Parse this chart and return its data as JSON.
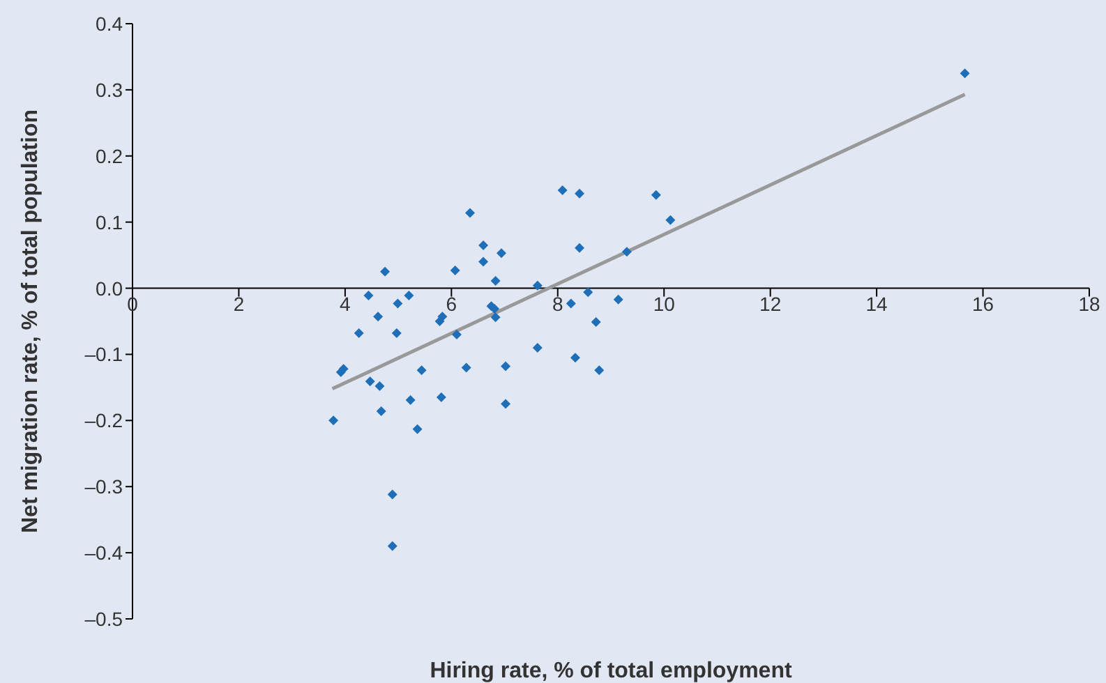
{
  "chart_data": {
    "type": "scatter",
    "xlabel": "Hiring rate, % of total employment",
    "ylabel": "Net migration rate, % of total population",
    "xlim": [
      0,
      18
    ],
    "xticks": [
      0,
      2,
      4,
      6,
      8,
      10,
      12,
      14,
      16,
      18
    ],
    "ylim": [
      -0.5,
      0.4
    ],
    "yticks": [
      {
        "value": -0.5,
        "label": "–0.5"
      },
      {
        "value": -0.4,
        "label": "–0.4"
      },
      {
        "value": -0.3,
        "label": "–0.3"
      },
      {
        "value": -0.2,
        "label": "–0.2"
      },
      {
        "value": -0.1,
        "label": "–0.1"
      },
      {
        "value": 0,
        "label": "0.0"
      },
      0.1,
      0.2,
      0.3,
      0.4
    ],
    "marker": "diamond",
    "series": [
      {
        "color": "#1f6fb8",
        "x": [
          3.78,
          3.92,
          3.97,
          4.26,
          4.44,
          4.47,
          4.62,
          4.65,
          4.68,
          4.75,
          4.89,
          4.89,
          4.97,
          4.99,
          5.2,
          5.23,
          5.36,
          5.44,
          5.78,
          5.81,
          5.83,
          6.07,
          6.1,
          6.28,
          6.35,
          6.6,
          6.6,
          6.75,
          6.81,
          6.83,
          6.83,
          6.94,
          7.02,
          7.02,
          7.62,
          7.62,
          8.09,
          8.25,
          8.33,
          8.41,
          8.41,
          8.57,
          8.72,
          8.78,
          9.14,
          9.3,
          9.85,
          10.12,
          15.66
        ],
        "values": [
          -0.2,
          -0.127,
          -0.122,
          -0.068,
          -0.011,
          -0.141,
          -0.043,
          -0.148,
          -0.186,
          0.025,
          -0.312,
          -0.39,
          -0.068,
          -0.023,
          -0.011,
          -0.169,
          -0.213,
          -0.124,
          -0.05,
          -0.165,
          -0.043,
          0.027,
          -0.07,
          -0.12,
          0.114,
          0.065,
          0.04,
          -0.027,
          -0.031,
          0.011,
          -0.044,
          0.053,
          -0.118,
          -0.175,
          0.004,
          -0.09,
          0.148,
          -0.023,
          -0.105,
          0.143,
          0.061,
          -0.006,
          -0.051,
          -0.124,
          -0.017,
          0.055,
          0.141,
          0.103,
          0.325
        ]
      },
      {
        "type": "line",
        "marker": "none",
        "color": "#999999",
        "x": [
          3.76,
          15.66
        ],
        "values": [
          -0.152,
          0.293
        ]
      }
    ]
  }
}
